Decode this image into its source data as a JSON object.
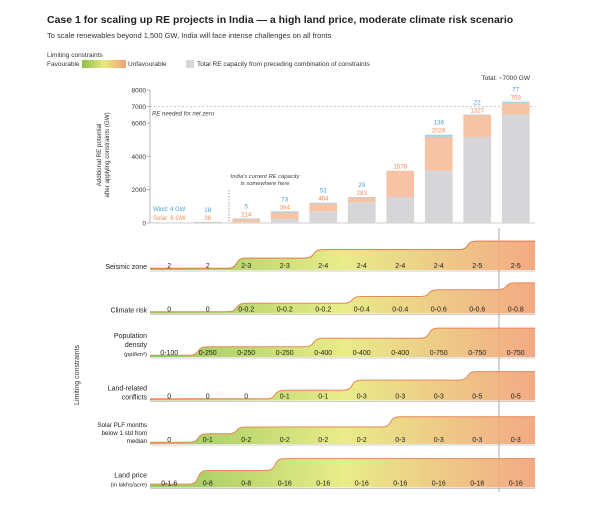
{
  "header": {
    "title": "Case 1  for scaling up RE projects in India — a high land price, moderate climate risk scenario",
    "subtitle": "To scale renewables beyond 1,500 GW, India will face intense challenges on all fronts"
  },
  "legend": {
    "caption": "Limiting constraints",
    "favourable": "Favourable",
    "unfavourable": "Unfavourable",
    "total_label": "Total RE capacity from preceding combination of constraints"
  },
  "colors": {
    "wind": "#4a9fd4",
    "solar": "#ef8a55",
    "solar_fill": "#f6c3a5",
    "total_fill": "#d6d6d8",
    "favourable": "#8dc04a",
    "mid": "#e6ea7c",
    "unfavourable": "#f2a077"
  },
  "chart_data": {
    "type": "bar",
    "ylabel": "Additional RE potential after applying constraints (GW)",
    "y_ticks": [
      "0",
      "2000",
      "4000",
      "6000",
      "7000",
      "8000"
    ],
    "ylim": [
      0,
      8000
    ],
    "net_zero_line": {
      "value": 7000,
      "label": "RE needed for net zero"
    },
    "current_capacity_note": "India's current RE capacity is somewhere here",
    "current_capacity": {
      "wind": "Wind: 4 GW",
      "solar": "Solar: 6 GW"
    },
    "total_annotation": "Total: ~7000 GW",
    "scenarios": 10,
    "series": [
      {
        "name": "Total RE capacity from preceding combination of constraints",
        "values": [
          0,
          10,
          54,
          243,
          700,
          1247,
          1559,
          3137,
          5163,
          6512
        ]
      },
      {
        "name": "Wind",
        "values": [
          18,
          5,
          73,
          53,
          29,
          136,
          22,
          77
        ]
      },
      {
        "name": "Solar",
        "values": [
          36,
          214,
          384,
          464,
          283,
          1578,
          2026,
          1327,
          703
        ]
      }
    ],
    "wind_bar_index": [
      1,
      2,
      3,
      4,
      5,
      7,
      8,
      9
    ],
    "solar_bar_index": [
      1,
      2,
      3,
      4,
      5,
      6,
      7,
      8,
      9
    ],
    "constraints": [
      {
        "name": "Seismic zone",
        "values": [
          "2",
          "2",
          "2-3",
          "2-3",
          "2-4",
          "2-4",
          "2-4",
          "2-4",
          "2-5",
          "2-5"
        ],
        "levels": [
          0.05,
          0.05,
          0.35,
          0.35,
          0.6,
          0.6,
          0.6,
          0.6,
          0.85,
          0.85
        ]
      },
      {
        "name": "Climate risk",
        "values": [
          "0",
          "0",
          "0-0.2",
          "0-0.2",
          "0-0.2",
          "0-0.4",
          "0-0.4",
          "0-0.6",
          "0-0.6",
          "0-0.8"
        ],
        "levels": [
          0.05,
          0.05,
          0.3,
          0.3,
          0.3,
          0.5,
          0.5,
          0.7,
          0.7,
          0.9
        ]
      },
      {
        "name": "Population density (ppl/km²)",
        "values": [
          "0-100",
          "0-250",
          "0-250",
          "0-250",
          "0-400",
          "0-400",
          "0-400",
          "0-750",
          "0-750",
          "0-750"
        ],
        "levels": [
          0.05,
          0.3,
          0.3,
          0.3,
          0.55,
          0.55,
          0.55,
          0.85,
          0.85,
          0.85
        ]
      },
      {
        "name": "Land-related conflicts",
        "values": [
          "0",
          "0",
          "0",
          "0-1",
          "0-1",
          "0-3",
          "0-3",
          "0-3",
          "0-5",
          "0-5"
        ],
        "levels": [
          0.05,
          0.05,
          0.05,
          0.3,
          0.3,
          0.6,
          0.6,
          0.6,
          0.85,
          0.85
        ]
      },
      {
        "name": "Solar PLF months below 1 std from median",
        "values": [
          "0",
          "0-1",
          "0-2",
          "0-2",
          "0-2",
          "0-2",
          "0-3",
          "0-3",
          "0-3",
          "0-3"
        ],
        "levels": [
          0.05,
          0.3,
          0.5,
          0.5,
          0.5,
          0.5,
          0.8,
          0.8,
          0.8,
          0.8
        ]
      },
      {
        "name": "Land price (in lakhs/acre)",
        "values": [
          "0-1.6",
          "0-8",
          "0-8",
          "0-16",
          "0-16",
          "0-16",
          "0-16",
          "0-16",
          "0-16",
          "0-16"
        ],
        "levels": [
          0.1,
          0.5,
          0.5,
          0.85,
          0.85,
          0.85,
          0.85,
          0.85,
          0.85,
          0.85
        ]
      }
    ],
    "constraints_axis_label": "Limiting constraints"
  }
}
